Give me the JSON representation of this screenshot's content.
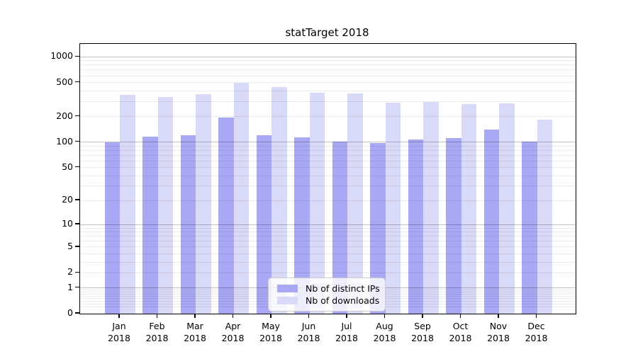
{
  "title": "statTarget 2018",
  "colors": {
    "ips_bar": "#a8a8f4",
    "downloads_bar": "#d9d9f8",
    "grid_major": "rgba(0,0,0,0.24)",
    "grid_minor": "rgba(0,0,0,0.075)"
  },
  "legend": {
    "items": [
      {
        "label": "Nb of distinct IPs",
        "color": "#a8a8f4"
      },
      {
        "label": "Nb of downloads",
        "color": "#d9d9f8"
      }
    ]
  },
  "axis": {
    "y_tick_labels": [
      "0",
      "1",
      "2",
      "5",
      "10",
      "20",
      "50",
      "100",
      "200",
      "500",
      "1000"
    ],
    "y_tick_values": [
      0,
      1,
      2,
      5,
      10,
      20,
      50,
      100,
      200,
      500,
      1000
    ],
    "x_month_labels": [
      "Jan",
      "Feb",
      "Mar",
      "Apr",
      "May",
      "Jun",
      "Jul",
      "Aug",
      "Sep",
      "Oct",
      "Nov",
      "Dec"
    ],
    "x_year_label": "2018"
  },
  "chart_data": {
    "type": "bar",
    "title": "statTarget 2018",
    "categories": [
      "Jan 2018",
      "Feb 2018",
      "Mar 2018",
      "Apr 2018",
      "May 2018",
      "Jun 2018",
      "Jul 2018",
      "Aug 2018",
      "Sep 2018",
      "Oct 2018",
      "Nov 2018",
      "Dec 2018"
    ],
    "series": [
      {
        "name": "Nb of distinct IPs",
        "values": [
          100,
          115,
          120,
          193,
          120,
          114,
          101,
          98,
          107,
          112,
          140,
          102
        ]
      },
      {
        "name": "Nb of downloads",
        "values": [
          357,
          338,
          366,
          492,
          442,
          380,
          373,
          291,
          296,
          281,
          286,
          184
        ]
      }
    ],
    "yscale": "log1p",
    "ylim": [
      0,
      1450
    ],
    "y_ticks": [
      0,
      1,
      2,
      5,
      10,
      20,
      50,
      100,
      200,
      500,
      1000
    ],
    "grid": "horizontal, major lines at powers of 10, faint minor log lines",
    "legend_position": "lower center inside plot",
    "xlabel": "",
    "ylabel": ""
  }
}
